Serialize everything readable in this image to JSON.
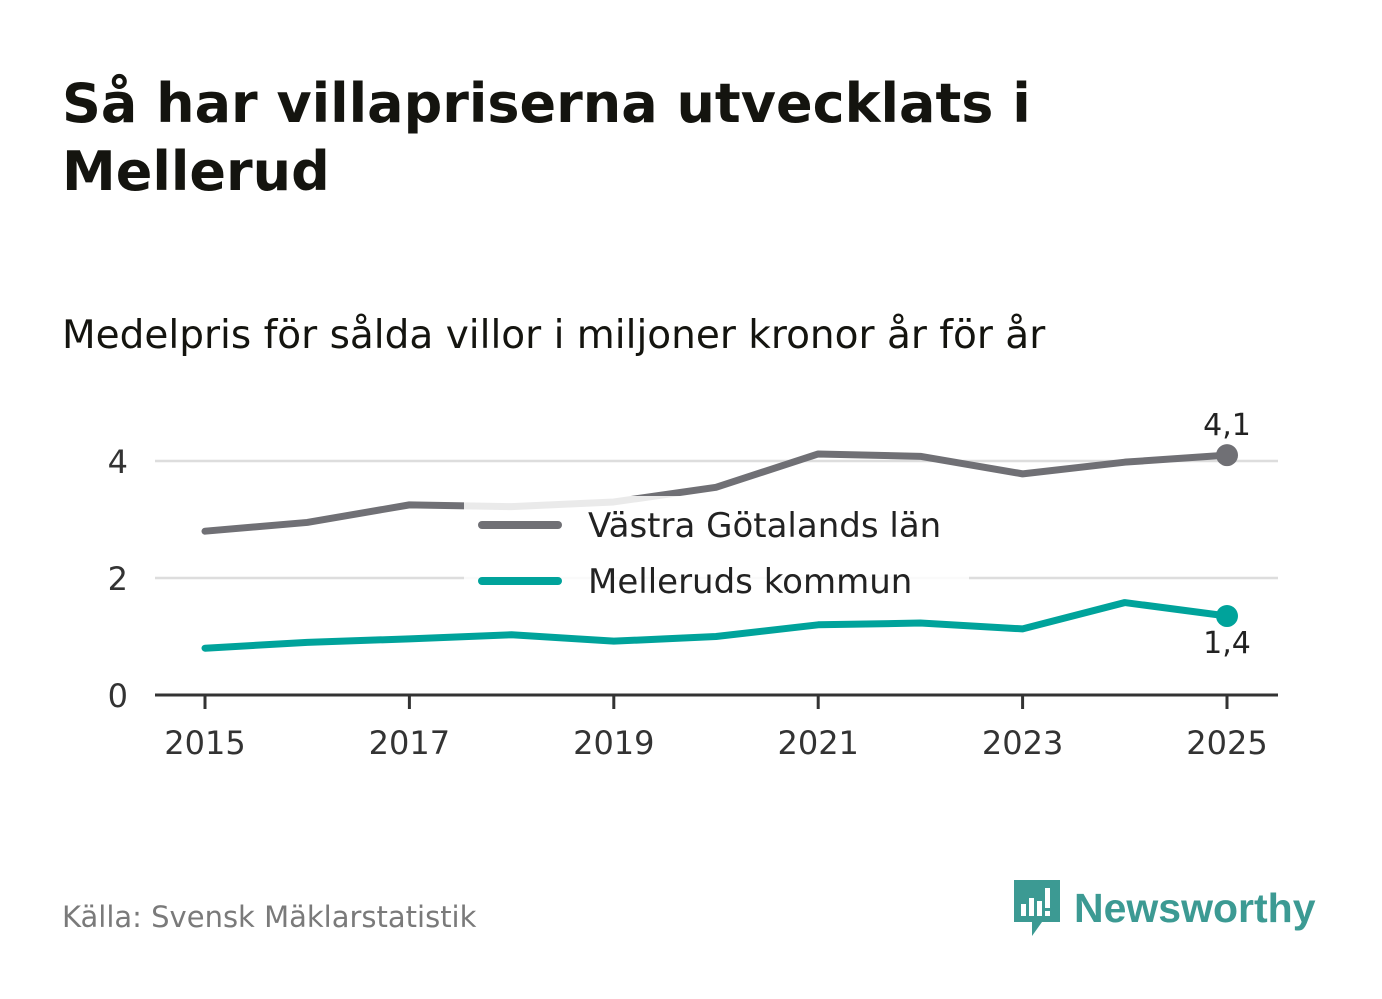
{
  "title": "Så har villapriserna utvecklats i Mellerud",
  "subtitle": "Medelpris för sålda villor i miljoner kronor år för år",
  "source": "Källa: Svensk Mäklarstatistik",
  "brand": {
    "name": "Newsworthy",
    "icon": "newsworthy-logo-icon",
    "color": "#3c9a93"
  },
  "chart_data": {
    "type": "line",
    "title": "Medelpris för sålda villor i miljoner kronor år för år",
    "xlabel": "",
    "ylabel": "",
    "x": [
      2015,
      2016,
      2017,
      2018,
      2019,
      2020,
      2021,
      2022,
      2023,
      2024,
      2025
    ],
    "xticks": [
      "2015",
      "2017",
      "2019",
      "2021",
      "2023",
      "2025"
    ],
    "yticks": [
      "0",
      "2",
      "4"
    ],
    "ylim": [
      0,
      4.5
    ],
    "grid": true,
    "legend": "center",
    "series": [
      {
        "name": "Västra Götalands län",
        "color": "#707075",
        "values": [
          2.8,
          2.95,
          3.25,
          3.22,
          3.3,
          3.55,
          4.12,
          4.08,
          3.78,
          3.98,
          4.1
        ],
        "end_label": "4,1"
      },
      {
        "name": "Melleruds kommun",
        "color": "#00a39b",
        "values": [
          0.8,
          0.9,
          0.96,
          1.03,
          0.92,
          1.0,
          1.2,
          1.23,
          1.13,
          1.58,
          1.35
        ],
        "end_label": "1,4"
      }
    ]
  }
}
